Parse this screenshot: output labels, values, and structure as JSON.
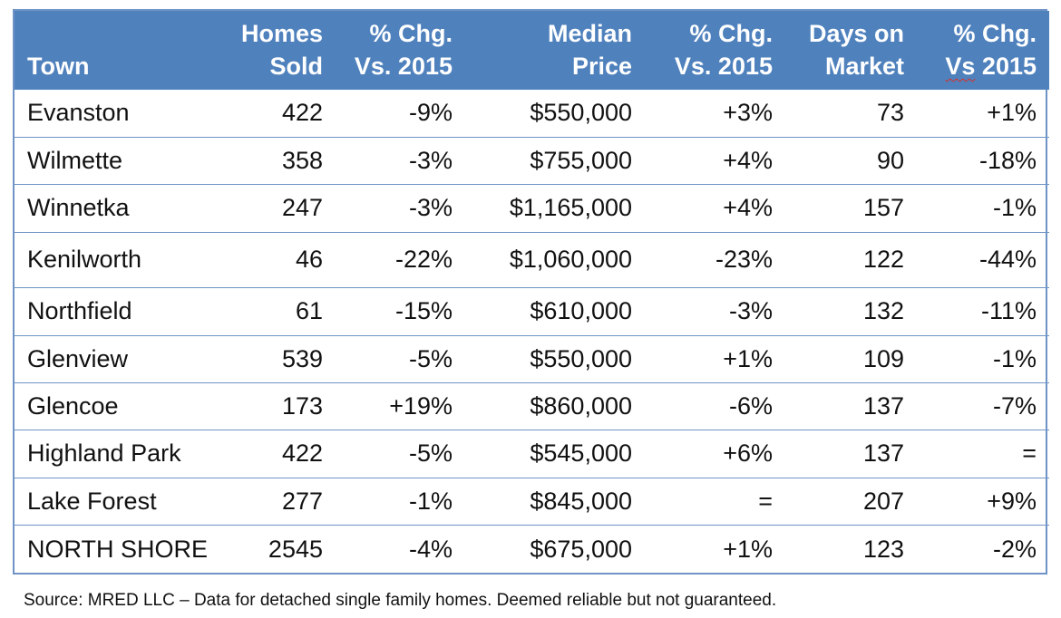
{
  "table": {
    "headers": {
      "town": "Town",
      "homes_sold_1": "Homes",
      "homes_sold_2": "Sold",
      "chg1_1": "% Chg.",
      "chg1_2": "Vs. 2015",
      "median_1": "Median",
      "median_2": "Price",
      "chg2_1": "% Chg.",
      "chg2_2": "Vs. 2015",
      "days_1": "Days on",
      "days_2": "Market",
      "chg3_1": "% Chg.",
      "chg3_2a": "Vs",
      "chg3_2b": " 2015"
    },
    "rows": [
      {
        "town": "Evanston",
        "homes_sold": "422",
        "homes_chg": "-9%",
        "median_price": "$550,000",
        "price_chg": "+3%",
        "days_on_market": "73",
        "days_chg": "+1%"
      },
      {
        "town": "Wilmette",
        "homes_sold": "358",
        "homes_chg": "-3%",
        "median_price": "$755,000",
        "price_chg": "+4%",
        "days_on_market": "90",
        "days_chg": "-18%"
      },
      {
        "town": "Winnetka",
        "homes_sold": "247",
        "homes_chg": "-3%",
        "median_price": "$1,165,000",
        "price_chg": "+4%",
        "days_on_market": "157",
        "days_chg": "-1%"
      },
      {
        "town": "Kenilworth",
        "homes_sold": "46",
        "homes_chg": "-22%",
        "median_price": "$1,060,000",
        "price_chg": "-23%",
        "days_on_market": "122",
        "days_chg": "-44%"
      },
      {
        "town": "Northfield",
        "homes_sold": "61",
        "homes_chg": "-15%",
        "median_price": "$610,000",
        "price_chg": "-3%",
        "days_on_market": "132",
        "days_chg": "-11%"
      },
      {
        "town": "Glenview",
        "homes_sold": "539",
        "homes_chg": "-5%",
        "median_price": "$550,000",
        "price_chg": "+1%",
        "days_on_market": "109",
        "days_chg": "-1%"
      },
      {
        "town": "Glencoe",
        "homes_sold": "173",
        "homes_chg": "+19%",
        "median_price": "$860,000",
        "price_chg": "-6%",
        "days_on_market": "137",
        "days_chg": "-7%"
      },
      {
        "town": "Highland Park",
        "homes_sold": "422",
        "homes_chg": "-5%",
        "median_price": "$545,000",
        "price_chg": "+6%",
        "days_on_market": "137",
        "days_chg": "="
      },
      {
        "town": "Lake Forest",
        "homes_sold": "277",
        "homes_chg": "-1%",
        "median_price": "$845,000",
        "price_chg": "=",
        "days_on_market": "207",
        "days_chg": "+9%"
      },
      {
        "town": "NORTH SHORE",
        "homes_sold": "2545",
        "homes_chg": "-4%",
        "median_price": "$675,000",
        "price_chg": "+1%",
        "days_on_market": "123",
        "days_chg": "-2%"
      }
    ]
  },
  "footer": {
    "source": "Source: MRED LLC – Data for detached single family homes. Deemed reliable but not guaranteed."
  },
  "colors": {
    "header_bg": "#4f81bd",
    "border": "#6f93c6"
  }
}
